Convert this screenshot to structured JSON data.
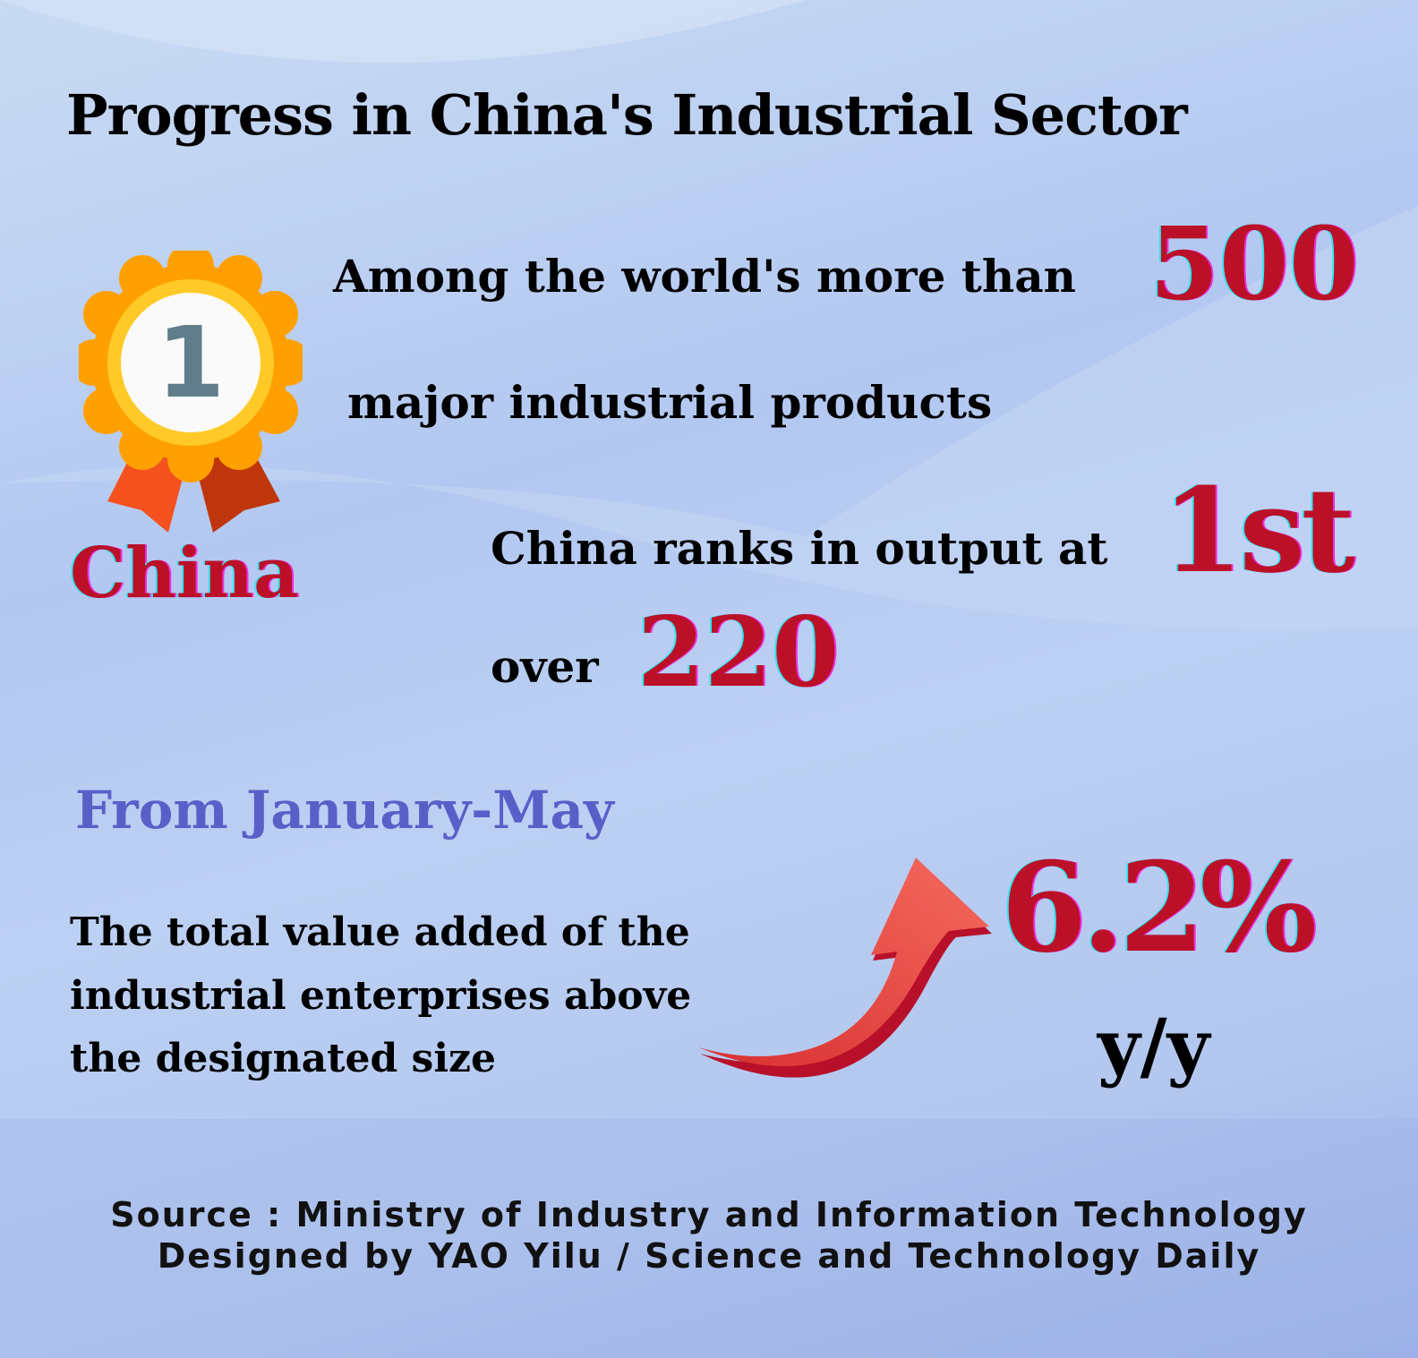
{
  "title": "Progress in China's Industrial Sector",
  "medal": {
    "rank": "1",
    "label": "China"
  },
  "stats": {
    "line1": "Among the world's more than",
    "products_count": "500",
    "line2": "major industrial products",
    "line3": "China ranks in output at",
    "rank": "1st",
    "line4": "over",
    "ranked_count": "220"
  },
  "period": "From January-May",
  "growth": {
    "description": [
      "The total value added of the",
      "industrial enterprises above",
      "the designated size"
    ],
    "value": "6.2%",
    "unit": "y/y"
  },
  "footer": {
    "source": "Source : Ministry of Industry and Information Technology",
    "credit": "Designed by YAO Yilu / Science and Technology Daily"
  },
  "colors": {
    "accent_red": "#bb1027",
    "period_blue": "#5a5fc8",
    "medal_orange": "#ffa000",
    "medal_ring": "#ffca28"
  }
}
